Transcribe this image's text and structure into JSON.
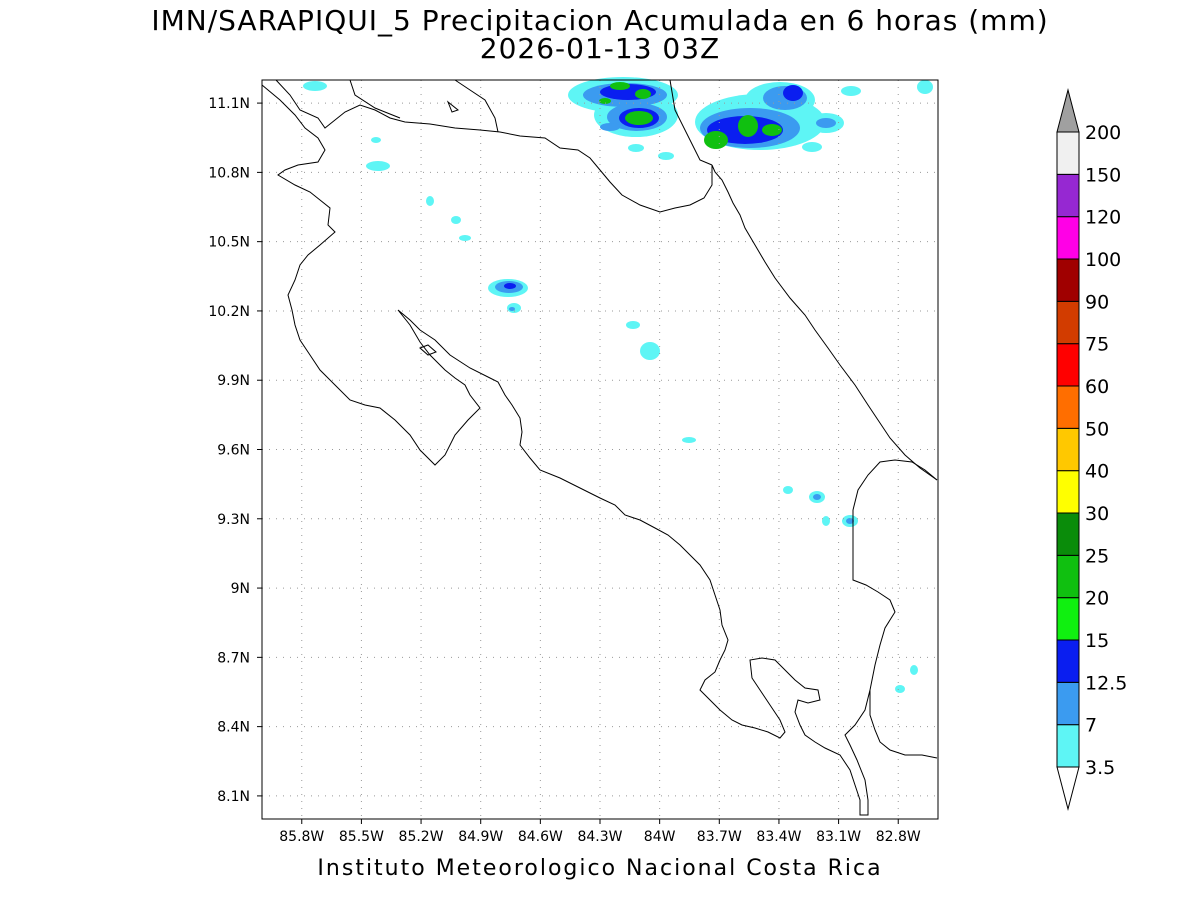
{
  "title_line1": "IMN/SARAPIQUI_5 Precipitacion Acumulada en 6 horas (mm)",
  "title_line2": "2026-01-13 03Z",
  "footer": "Instituto Meteorologico Nacional Costa Rica",
  "map": {
    "lon_range": [
      -86.0,
      -82.6
    ],
    "lat_range": [
      8.0,
      11.2
    ],
    "lon_ticks": [
      "85.8W",
      "85.5W",
      "85.2W",
      "84.9W",
      "84.6W",
      "84.3W",
      "84W",
      "83.7W",
      "83.4W",
      "83.1W",
      "82.8W"
    ],
    "lat_ticks": [
      "8.1N",
      "8.4N",
      "8.7N",
      "9N",
      "9.3N",
      "9.6N",
      "9.9N",
      "10.2N",
      "10.5N",
      "10.8N",
      "11.1N"
    ],
    "grid": "dotted"
  },
  "colorbar": {
    "labels": [
      "3.5",
      "7",
      "12.5",
      "15",
      "20",
      "25",
      "30",
      "40",
      "50",
      "60",
      "75",
      "90",
      "100",
      "120",
      "150",
      "200"
    ],
    "colors": [
      "#5ef5f5",
      "#3b9bf0",
      "#0a1ef0",
      "#10f010",
      "#10c010",
      "#0a8c0a",
      "#ffff00",
      "#ffc800",
      "#ff6e00",
      "#ff0000",
      "#d23c00",
      "#a00000",
      "#ff00e6",
      "#9628d2",
      "#f0f0f0",
      "#a0a0a0"
    ],
    "bottom_color": "#ffffff"
  }
}
